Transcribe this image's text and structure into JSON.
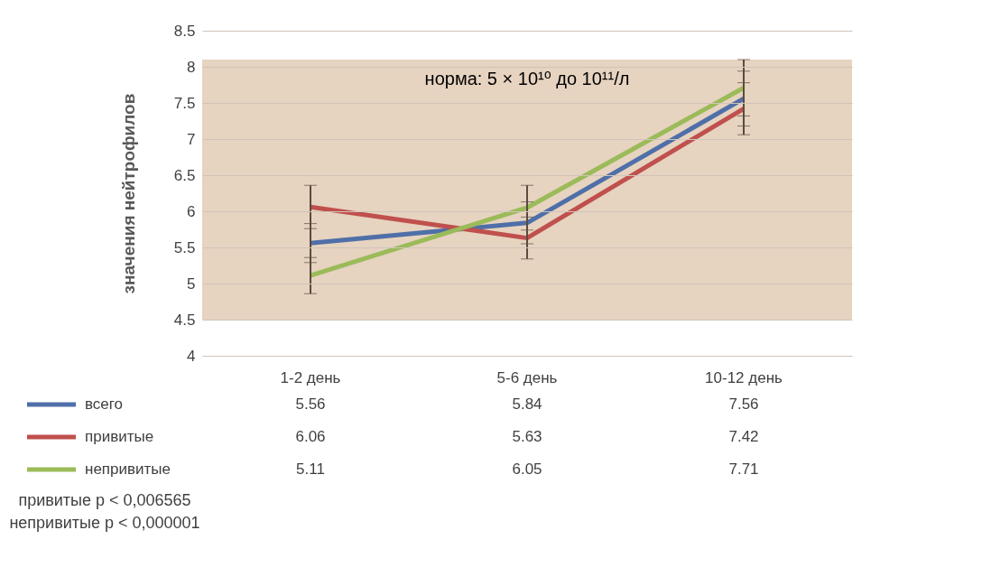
{
  "chart_data": {
    "type": "line",
    "ylabel": "значения нейтрофилов",
    "categories": [
      "1-2 день",
      "5-6 день",
      "10-12 день"
    ],
    "series": [
      {
        "name": "всего",
        "color": "#4f6fa8",
        "values": [
          5.56,
          5.84,
          7.56
        ],
        "errors": [
          0.27,
          0.29,
          0.38
        ]
      },
      {
        "name": "привитые",
        "color": "#c0504d",
        "values": [
          6.06,
          5.63,
          7.42
        ],
        "errors": [
          0.3,
          0.29,
          0.36
        ]
      },
      {
        "name": "непривитые",
        "color": "#9bbb59",
        "values": [
          5.11,
          6.05,
          7.71
        ],
        "errors": [
          0.25,
          0.31,
          0.39
        ]
      }
    ],
    "ylim": [
      4,
      8.5
    ],
    "yticks": [
      4,
      4.5,
      5,
      5.5,
      6,
      6.5,
      7,
      7.5,
      8,
      8.5
    ],
    "bands": [
      {
        "axis": "y",
        "from": 4.5,
        "to": 8.1,
        "label": "норма: 5 × 10¹⁰ до 10¹¹/л",
        "color": "#e6d3c0"
      }
    ],
    "grid": "y",
    "legend": "bottom",
    "marker": "none",
    "data_labels": true,
    "annotations": [
      "привитые p < 0,006565",
      "непривитые p < 0,000001"
    ]
  }
}
